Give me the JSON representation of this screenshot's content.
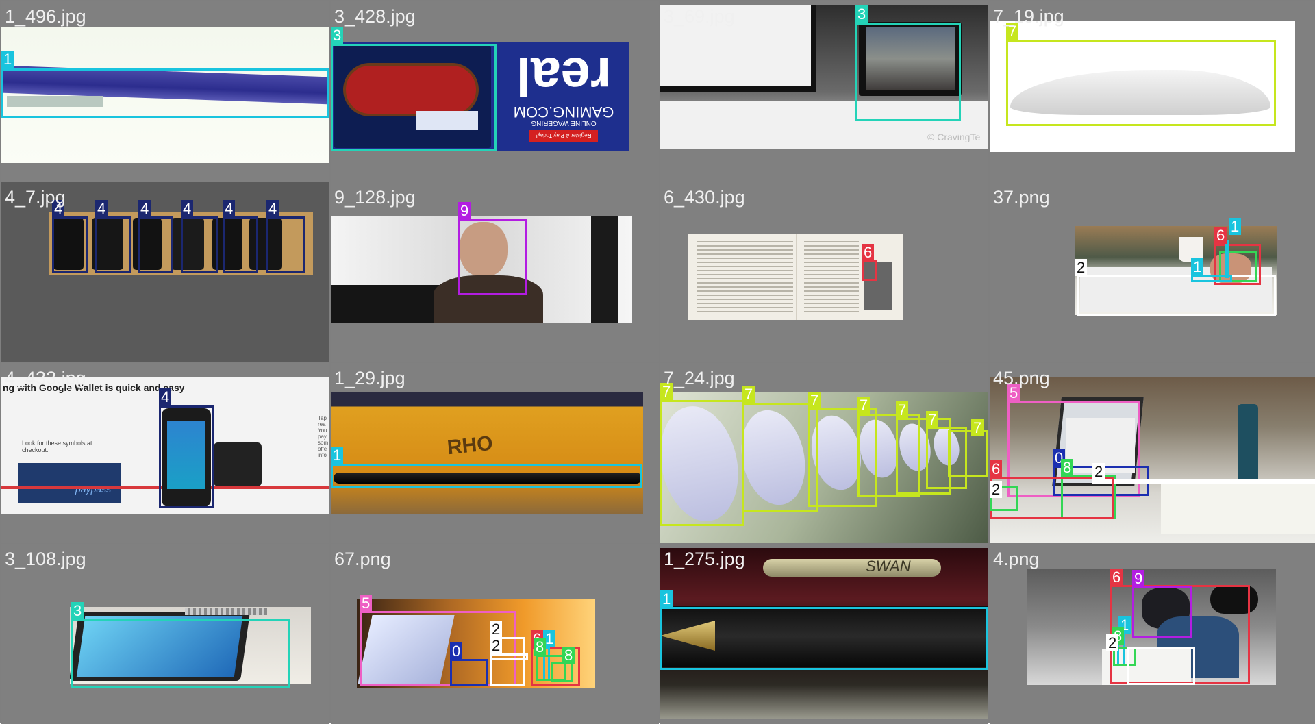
{
  "mosaic": {
    "tiles": [
      {
        "filename": "1_496.jpg",
        "detections": [
          {
            "cls": "1"
          }
        ]
      },
      {
        "filename": "3_428.jpg",
        "detections": [
          {
            "cls": "3"
          }
        ],
        "embedded_text": {
          "logo": "real",
          "sub": "GAMING.COM",
          "tagline": "ONLINE WAGERING",
          "button": "Register & Play Today!"
        }
      },
      {
        "filename": "3_69.jpg",
        "detections": [
          {
            "cls": "3"
          }
        ],
        "embedded_text": {
          "credit": "© CravingTe"
        }
      },
      {
        "filename": "7_19.jpg",
        "detections": [
          {
            "cls": "7"
          }
        ]
      },
      {
        "filename": "4_7.jpg",
        "detections": [
          {
            "cls": "4"
          },
          {
            "cls": "4"
          },
          {
            "cls": "4"
          },
          {
            "cls": "4"
          },
          {
            "cls": "4"
          },
          {
            "cls": "4"
          }
        ]
      },
      {
        "filename": "9_128.jpg",
        "detections": [
          {
            "cls": "9"
          }
        ]
      },
      {
        "filename": "6_430.jpg",
        "detections": [
          {
            "cls": "6"
          }
        ]
      },
      {
        "filename": "37.png",
        "detections": [
          {
            "cls": "1"
          },
          {
            "cls": "6"
          },
          {
            "cls": "1"
          },
          {
            "cls": "2"
          }
        ]
      },
      {
        "filename": "4_433.jpg",
        "detections": [
          {
            "cls": "4"
          }
        ],
        "embedded_text": {
          "headline": "ng with Google Wallet is quick and easy",
          "hint": "Look for these symbols at checkout.",
          "paypass": "paypass",
          "side": "Tap rea You pay som offe info"
        }
      },
      {
        "filename": "1_29.jpg",
        "detections": [
          {
            "cls": "1"
          }
        ],
        "embedded_text": {
          "folder": "RHO"
        }
      },
      {
        "filename": "7_24.jpg",
        "detections": [
          {
            "cls": "7"
          },
          {
            "cls": "7"
          },
          {
            "cls": "7"
          },
          {
            "cls": "7"
          },
          {
            "cls": "7"
          },
          {
            "cls": "7"
          },
          {
            "cls": "7"
          }
        ]
      },
      {
        "filename": "45.png",
        "detections": [
          {
            "cls": "5"
          },
          {
            "cls": "0"
          },
          {
            "cls": "8"
          },
          {
            "cls": "2"
          },
          {
            "cls": "6"
          },
          {
            "cls": "2"
          }
        ]
      },
      {
        "filename": "3_108.jpg",
        "detections": [
          {
            "cls": "3"
          }
        ]
      },
      {
        "filename": "67.png",
        "detections": [
          {
            "cls": "5"
          },
          {
            "cls": "2"
          },
          {
            "cls": "2"
          },
          {
            "cls": "0"
          },
          {
            "cls": "6"
          },
          {
            "cls": "1"
          },
          {
            "cls": "8"
          },
          {
            "cls": "8"
          }
        ]
      },
      {
        "filename": "1_275.jpg",
        "detections": [
          {
            "cls": "1"
          }
        ],
        "embedded_text": {
          "pen": "SWAN"
        }
      },
      {
        "filename": "4.png",
        "detections": [
          {
            "cls": "6"
          },
          {
            "cls": "9"
          },
          {
            "cls": "1"
          },
          {
            "cls": "8"
          },
          {
            "cls": "2"
          }
        ]
      }
    ]
  },
  "class_colors": {
    "0": "#1b2fb0",
    "1": "#19c4de",
    "2": "#ffffff",
    "3": "#24d3b8",
    "4": "#1b2770",
    "5": "#ee5fc4",
    "6": "#e53443",
    "7": "#c6e61e",
    "8": "#33d655",
    "9": "#b31de2"
  }
}
